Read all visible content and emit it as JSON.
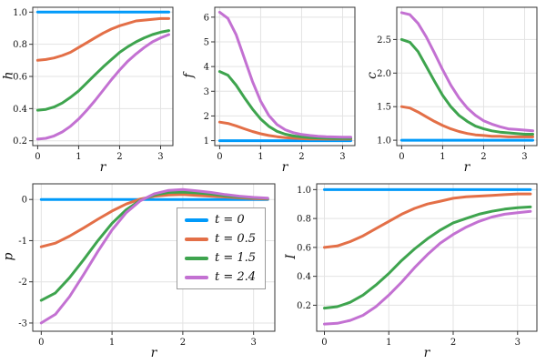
{
  "figure": {
    "background": "#ffffff",
    "frame_color": "#333333",
    "grid_color": "#e3e3e3"
  },
  "legend": {
    "position": "inside-p-panel",
    "entries": [
      {
        "label": "t = 0",
        "color": "#009AFA"
      },
      {
        "label": "t = 0.5",
        "color": "#E36F47"
      },
      {
        "label": "t = 1.5",
        "color": "#3EA44E"
      },
      {
        "label": "t = 2.4",
        "color": "#C371D2"
      }
    ]
  },
  "chart_data": [
    {
      "type": "line",
      "id": "h",
      "title": "",
      "xlabel": "r",
      "ylabel": "h",
      "xlim": [
        -0.12,
        3.3
      ],
      "ylim": [
        0.17,
        1.03
      ],
      "grid": true,
      "xticks": [
        0,
        1,
        2,
        3
      ],
      "xtick_labels": [
        "0",
        "1",
        "2",
        "3"
      ],
      "yticks": [
        0.2,
        0.4,
        0.6,
        0.8,
        1.0
      ],
      "ytick_labels": [
        "0.2",
        "0.4",
        "0.6",
        "0.8",
        "1.0"
      ],
      "x": [
        0,
        0.2,
        0.4,
        0.6,
        0.8,
        1.0,
        1.2,
        1.4,
        1.6,
        1.8,
        2.0,
        2.2,
        2.4,
        2.6,
        2.8,
        3.0,
        3.2
      ],
      "series": [
        {
          "name": "t = 0",
          "color": "#009AFA",
          "values": [
            1,
            1,
            1,
            1,
            1,
            1,
            1,
            1,
            1,
            1,
            1,
            1,
            1,
            1,
            1,
            1,
            1
          ]
        },
        {
          "name": "t = 0.5",
          "color": "#E36F47",
          "values": [
            0.7,
            0.705,
            0.715,
            0.73,
            0.75,
            0.78,
            0.81,
            0.84,
            0.87,
            0.895,
            0.915,
            0.93,
            0.945,
            0.95,
            0.955,
            0.96,
            0.96
          ]
        },
        {
          "name": "t = 1.5",
          "color": "#3EA44E",
          "values": [
            0.39,
            0.395,
            0.41,
            0.435,
            0.47,
            0.51,
            0.56,
            0.61,
            0.66,
            0.705,
            0.75,
            0.785,
            0.815,
            0.84,
            0.86,
            0.875,
            0.885
          ]
        },
        {
          "name": "t = 2.4",
          "color": "#C371D2",
          "values": [
            0.21,
            0.215,
            0.23,
            0.255,
            0.29,
            0.335,
            0.39,
            0.45,
            0.515,
            0.58,
            0.64,
            0.695,
            0.74,
            0.78,
            0.815,
            0.84,
            0.86
          ]
        }
      ]
    },
    {
      "type": "line",
      "id": "f",
      "title": "",
      "xlabel": "r",
      "ylabel": "f",
      "xlim": [
        -0.12,
        3.3
      ],
      "ylim": [
        0.8,
        6.4
      ],
      "grid": true,
      "xticks": [
        0,
        1,
        2,
        3
      ],
      "xtick_labels": [
        "0",
        "1",
        "2",
        "3"
      ],
      "yticks": [
        1,
        2,
        3,
        4,
        5,
        6
      ],
      "ytick_labels": [
        "1",
        "2",
        "3",
        "4",
        "5",
        "6"
      ],
      "x": [
        0,
        0.2,
        0.4,
        0.6,
        0.8,
        1.0,
        1.2,
        1.4,
        1.6,
        1.8,
        2.0,
        2.2,
        2.4,
        2.6,
        2.8,
        3.0,
        3.2
      ],
      "series": [
        {
          "name": "t = 0",
          "color": "#009AFA",
          "values": [
            1,
            1,
            1,
            1,
            1,
            1,
            1,
            1,
            1,
            1,
            1,
            1,
            1,
            1,
            1,
            1,
            1
          ]
        },
        {
          "name": "t = 0.5",
          "color": "#E36F47",
          "values": [
            1.75,
            1.7,
            1.6,
            1.48,
            1.37,
            1.28,
            1.21,
            1.16,
            1.12,
            1.1,
            1.08,
            1.07,
            1.07,
            1.06,
            1.06,
            1.06,
            1.06
          ]
        },
        {
          "name": "t = 1.5",
          "color": "#3EA44E",
          "values": [
            3.8,
            3.65,
            3.25,
            2.75,
            2.28,
            1.88,
            1.58,
            1.38,
            1.26,
            1.19,
            1.15,
            1.12,
            1.11,
            1.1,
            1.09,
            1.09,
            1.09
          ]
        },
        {
          "name": "t = 2.4",
          "color": "#C371D2",
          "values": [
            6.2,
            5.95,
            5.3,
            4.35,
            3.4,
            2.6,
            2.02,
            1.65,
            1.44,
            1.32,
            1.25,
            1.21,
            1.18,
            1.16,
            1.15,
            1.14,
            1.14
          ]
        }
      ]
    },
    {
      "type": "line",
      "id": "c",
      "title": "",
      "xlabel": "r",
      "ylabel": "c",
      "xlim": [
        -0.12,
        3.3
      ],
      "ylim": [
        0.92,
        2.98
      ],
      "grid": true,
      "xticks": [
        0,
        1,
        2,
        3
      ],
      "xtick_labels": [
        "0",
        "1",
        "2",
        "3"
      ],
      "yticks": [
        1.0,
        1.5,
        2.0,
        2.5
      ],
      "ytick_labels": [
        "1.0",
        "1.5",
        "2.0",
        "2.5"
      ],
      "x": [
        0,
        0.2,
        0.4,
        0.6,
        0.8,
        1.0,
        1.2,
        1.4,
        1.6,
        1.8,
        2.0,
        2.2,
        2.4,
        2.6,
        2.8,
        3.0,
        3.2
      ],
      "series": [
        {
          "name": "t = 0",
          "color": "#009AFA",
          "values": [
            1,
            1,
            1,
            1,
            1,
            1,
            1,
            1,
            1,
            1,
            1,
            1,
            1,
            1,
            1,
            1,
            1
          ]
        },
        {
          "name": "t = 0.5",
          "color": "#E36F47",
          "values": [
            1.5,
            1.48,
            1.42,
            1.35,
            1.28,
            1.22,
            1.17,
            1.13,
            1.1,
            1.08,
            1.07,
            1.06,
            1.06,
            1.05,
            1.05,
            1.05,
            1.05
          ]
        },
        {
          "name": "t = 1.5",
          "color": "#3EA44E",
          "values": [
            2.5,
            2.46,
            2.32,
            2.1,
            1.88,
            1.67,
            1.5,
            1.37,
            1.28,
            1.21,
            1.17,
            1.14,
            1.12,
            1.11,
            1.1,
            1.09,
            1.09
          ]
        },
        {
          "name": "t = 2.4",
          "color": "#C371D2",
          "values": [
            2.9,
            2.87,
            2.74,
            2.54,
            2.3,
            2.05,
            1.82,
            1.63,
            1.48,
            1.37,
            1.29,
            1.24,
            1.2,
            1.17,
            1.16,
            1.15,
            1.14
          ]
        }
      ]
    },
    {
      "type": "line",
      "id": "p",
      "title": "",
      "xlabel": "r",
      "ylabel": "p",
      "xlim": [
        -0.12,
        3.3
      ],
      "ylim": [
        -3.2,
        0.38
      ],
      "grid": true,
      "xticks": [
        0,
        1,
        2,
        3
      ],
      "xtick_labels": [
        "0",
        "1",
        "2",
        "3"
      ],
      "yticks": [
        -3,
        -2,
        -1,
        0
      ],
      "ytick_labels": [
        "-3",
        "-2",
        "-1",
        "0"
      ],
      "x": [
        0,
        0.2,
        0.4,
        0.6,
        0.8,
        1.0,
        1.2,
        1.4,
        1.6,
        1.8,
        2.0,
        2.2,
        2.4,
        2.6,
        2.8,
        3.0,
        3.2
      ],
      "series": [
        {
          "name": "t = 0",
          "color": "#009AFA",
          "values": [
            0,
            0,
            0,
            0,
            0,
            0,
            0,
            0,
            0,
            0,
            0,
            0,
            0,
            0,
            0,
            0,
            0
          ]
        },
        {
          "name": "t = 0.5",
          "color": "#E36F47",
          "values": [
            -1.15,
            -1.06,
            -0.89,
            -0.69,
            -0.48,
            -0.28,
            -0.11,
            0.01,
            0.08,
            0.11,
            0.12,
            0.1,
            0.08,
            0.06,
            0.04,
            0.02,
            0.01
          ]
        },
        {
          "name": "t = 1.5",
          "color": "#3EA44E",
          "values": [
            -2.45,
            -2.27,
            -1.9,
            -1.46,
            -1.0,
            -0.58,
            -0.25,
            -0.02,
            0.11,
            0.17,
            0.18,
            0.16,
            0.13,
            0.09,
            0.06,
            0.04,
            0.02
          ]
        },
        {
          "name": "t = 2.4",
          "color": "#C371D2",
          "values": [
            -3.0,
            -2.79,
            -2.36,
            -1.82,
            -1.26,
            -0.74,
            -0.32,
            -0.03,
            0.14,
            0.22,
            0.24,
            0.21,
            0.17,
            0.12,
            0.08,
            0.05,
            0.03
          ]
        }
      ]
    },
    {
      "type": "line",
      "id": "I",
      "title": "",
      "xlabel": "r",
      "ylabel": "I",
      "xlim": [
        -0.12,
        3.3
      ],
      "ylim": [
        0.02,
        1.04
      ],
      "grid": true,
      "xticks": [
        0,
        1,
        2,
        3
      ],
      "xtick_labels": [
        "0",
        "1",
        "2",
        "3"
      ],
      "yticks": [
        0.2,
        0.4,
        0.6,
        0.8,
        1.0
      ],
      "ytick_labels": [
        "0.2",
        "0.4",
        "0.6",
        "0.8",
        "1.0"
      ],
      "x": [
        0,
        0.2,
        0.4,
        0.6,
        0.8,
        1.0,
        1.2,
        1.4,
        1.6,
        1.8,
        2.0,
        2.2,
        2.4,
        2.6,
        2.8,
        3.0,
        3.2
      ],
      "series": [
        {
          "name": "t = 0",
          "color": "#009AFA",
          "values": [
            1,
            1,
            1,
            1,
            1,
            1,
            1,
            1,
            1,
            1,
            1,
            1,
            1,
            1,
            1,
            1,
            1
          ]
        },
        {
          "name": "t = 0.5",
          "color": "#E36F47",
          "values": [
            0.6,
            0.61,
            0.64,
            0.68,
            0.73,
            0.78,
            0.83,
            0.87,
            0.9,
            0.92,
            0.94,
            0.95,
            0.955,
            0.96,
            0.965,
            0.97,
            0.97
          ]
        },
        {
          "name": "t = 1.5",
          "color": "#3EA44E",
          "values": [
            0.18,
            0.19,
            0.22,
            0.27,
            0.34,
            0.42,
            0.51,
            0.59,
            0.66,
            0.72,
            0.77,
            0.8,
            0.83,
            0.85,
            0.865,
            0.875,
            0.88
          ]
        },
        {
          "name": "t = 2.4",
          "color": "#C371D2",
          "values": [
            0.07,
            0.075,
            0.095,
            0.13,
            0.19,
            0.27,
            0.36,
            0.46,
            0.55,
            0.63,
            0.69,
            0.74,
            0.78,
            0.81,
            0.83,
            0.84,
            0.85
          ]
        }
      ]
    }
  ]
}
